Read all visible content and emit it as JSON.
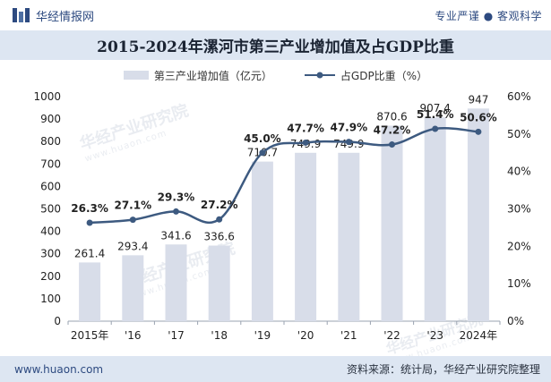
{
  "header": {
    "brand_name": "华经情报网",
    "tagline": "专业严谨 ● 客观科学"
  },
  "watermark": {
    "text": "华经产业研究院",
    "url": "www.huaon.com"
  },
  "footer": {
    "url": "www.huaon.com",
    "source": "资料来源：统计局，华经产业研究院整理"
  },
  "colors": {
    "bar": "#d8dde9",
    "line": "#3d5a80",
    "title_band": "#dde6f2",
    "brand": "#2d4a80"
  },
  "chart_data": {
    "type": "bar",
    "title": "2015-2024年漯河市第三产业增加值及占GDP比重",
    "categories": [
      "2015年",
      "'16",
      "'17",
      "'18",
      "'19",
      "'20",
      "'21",
      "'22",
      "'23",
      "2024年"
    ],
    "series": [
      {
        "name": "第三产业增加值（亿元）",
        "type": "bar",
        "axis": "left",
        "values": [
          261.4,
          293.4,
          341.6,
          336.6,
          710.7,
          749.9,
          749.9,
          870.6,
          907.4,
          947
        ],
        "labels": [
          "261.4",
          "293.4",
          "341.6",
          "336.6",
          "710.7",
          "749.9",
          "749.9",
          "870.6",
          "907.4",
          "947"
        ]
      },
      {
        "name": "占GDP比重（%）",
        "type": "line",
        "axis": "right",
        "values": [
          26.3,
          27.1,
          29.3,
          27.2,
          45.0,
          47.7,
          47.9,
          47.2,
          51.4,
          50.6
        ],
        "labels": [
          "26.3%",
          "27.1%",
          "29.3%",
          "27.2%",
          "45.0%",
          "47.7%",
          "47.9%",
          "47.2%",
          "51.4%",
          "50.6%"
        ]
      }
    ],
    "y_left": {
      "min": 0,
      "max": 1000,
      "ticks": [
        "0",
        "100",
        "200",
        "300",
        "400",
        "500",
        "600",
        "700",
        "800",
        "900",
        "1000"
      ]
    },
    "y_right": {
      "min": 0,
      "max": 60,
      "ticks": [
        "0%",
        "10%",
        "20%",
        "30%",
        "40%",
        "50%",
        "60%"
      ]
    },
    "grid": false,
    "legend_position": "top-center"
  }
}
